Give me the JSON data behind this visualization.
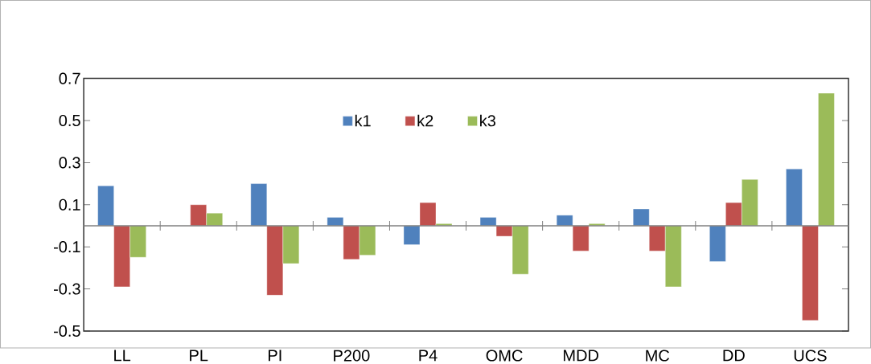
{
  "chart_data": {
    "type": "bar",
    "categories": [
      "LL",
      "PL",
      "PI",
      "P200",
      "P4",
      "OMC",
      "MDD",
      "MC",
      "DD",
      "UCS"
    ],
    "series": [
      {
        "name": "k1",
        "color": "#4f81bd",
        "values": [
          0.19,
          null,
          0.2,
          0.04,
          -0.09,
          0.04,
          0.05,
          0.08,
          -0.17,
          0.27
        ]
      },
      {
        "name": "k2",
        "color": "#c0504d",
        "values": [
          -0.29,
          0.1,
          -0.33,
          -0.16,
          0.11,
          -0.05,
          -0.12,
          -0.12,
          0.11,
          -0.45
        ]
      },
      {
        "name": "k3",
        "color": "#9bbb59",
        "values": [
          -0.15,
          0.06,
          -0.18,
          -0.14,
          0.01,
          -0.23,
          0.01,
          -0.29,
          0.22,
          0.63
        ]
      }
    ],
    "ylim": [
      -0.5,
      0.7
    ],
    "yticks": [
      -0.5,
      -0.3,
      -0.1,
      0.1,
      0.3,
      0.5,
      0.7
    ],
    "grid": false,
    "legend": "top"
  }
}
